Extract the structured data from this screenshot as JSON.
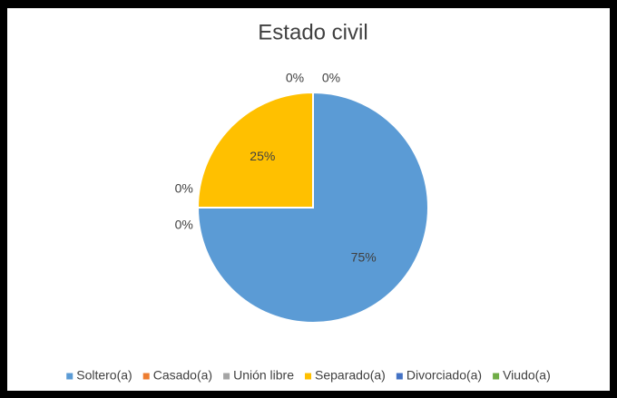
{
  "chart_data": {
    "type": "pie",
    "title": "Estado civil",
    "categories": [
      "Soltero(a)",
      "Casado(a)",
      "Unión libre",
      "Separado(a)",
      "Divorciado(a)",
      "Viudo(a)"
    ],
    "values": [
      75,
      0,
      0,
      25,
      0,
      0
    ],
    "value_labels": [
      "75%",
      "0%",
      "0%",
      "25%",
      "0%",
      "0%"
    ],
    "colors": [
      "#5b9bd5",
      "#ed7d31",
      "#a5a5a5",
      "#ffc000",
      "#4472c4",
      "#70ad47"
    ],
    "legend": "bottom"
  }
}
